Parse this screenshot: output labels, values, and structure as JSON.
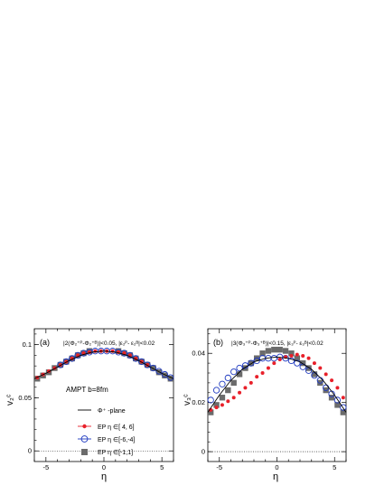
{
  "chart_data": [
    {
      "type": "scatter",
      "panel_label": "(a)",
      "selection": "|2(Φ₂⁺ᴾ-Φ₂⁺ᴮ)|<0.05, |ε₂ᴾ- ε₂ᴮ|<0.02",
      "ylabel": "v₂ᶜ",
      "xlabel": "η",
      "annotation": "AMPT b=8fm",
      "xlim": [
        -6,
        6
      ],
      "ylim": [
        -0.01,
        0.115
      ],
      "xticks": [
        -5,
        0,
        5
      ],
      "yticks": [
        0,
        0.05,
        0.1
      ],
      "ytick_labels": [
        "0",
        "0.05",
        "0.1"
      ],
      "legend": [
        {
          "label": "Φ⁺ -plane",
          "style": "line"
        },
        {
          "label": "EP  η ∈[ 4, 6]",
          "style": "red-filled-circle"
        },
        {
          "label": "EP  η ∈[-6,-4]",
          "style": "blue-open-circle"
        },
        {
          "label": "EP  η ∈[-1,1]",
          "style": "grey-square"
        }
      ],
      "series": [
        {
          "name": "Φ⁺ -plane",
          "x": [
            -6,
            -5,
            -4,
            -3,
            -2,
            -1,
            0,
            1,
            2,
            3,
            4,
            5,
            6
          ],
          "y": [
            0.068,
            0.073,
            0.079,
            0.085,
            0.09,
            0.093,
            0.094,
            0.093,
            0.09,
            0.085,
            0.079,
            0.073,
            0.068
          ]
        },
        {
          "name": "EP  η ∈[ 4, 6]",
          "x": [
            -5.75,
            -5.25,
            -4.75,
            -4.25,
            -3.75,
            -3.25,
            -2.75,
            -2.25,
            -1.75,
            -1.25,
            -0.75,
            -0.25,
            0.25,
            0.75,
            1.25,
            1.75,
            2.25,
            2.75,
            3.25,
            3.75
          ],
          "y": [
            0.069,
            0.072,
            0.075,
            0.078,
            0.081,
            0.084,
            0.087,
            0.09,
            0.092,
            0.093,
            0.094,
            0.094,
            0.094,
            0.094,
            0.093,
            0.092,
            0.09,
            0.087,
            0.084,
            0.081
          ]
        },
        {
          "name": "EP  η ∈[-6,-4]",
          "x": [
            -3.75,
            -3.25,
            -2.75,
            -2.25,
            -1.75,
            -1.25,
            -0.75,
            -0.25,
            0.25,
            0.75,
            1.25,
            1.75,
            2.25,
            2.75,
            3.25,
            3.75,
            4.25,
            4.75,
            5.25,
            5.75
          ],
          "y": [
            0.081,
            0.084,
            0.087,
            0.09,
            0.092,
            0.093,
            0.094,
            0.094,
            0.094,
            0.094,
            0.093,
            0.092,
            0.09,
            0.087,
            0.084,
            0.081,
            0.078,
            0.075,
            0.072,
            0.069
          ]
        },
        {
          "name": "EP  η ∈[-1,1]",
          "x": [
            -5.75,
            -5.25,
            -4.75,
            -4.25,
            -3.75,
            -3.25,
            -2.75,
            -2.25,
            -1.75,
            -1.25,
            1.25,
            1.75,
            2.25,
            2.75,
            3.25,
            3.75,
            4.25,
            4.75,
            5.25,
            5.75
          ],
          "y": [
            0.068,
            0.071,
            0.074,
            0.078,
            0.081,
            0.084,
            0.087,
            0.09,
            0.092,
            0.094,
            0.094,
            0.092,
            0.09,
            0.087,
            0.084,
            0.081,
            0.078,
            0.074,
            0.071,
            0.068
          ]
        }
      ]
    },
    {
      "type": "scatter",
      "panel_label": "(b)",
      "selection": "|3(Φ₃⁺ᴾ-Φ₃⁺ᴮ)|<0.15, |ε₃ᴾ- ε₃ᴮ|<0.02",
      "ylabel": "v₃ᶜ",
      "xlabel": "η",
      "xlim": [
        -6,
        6
      ],
      "ylim": [
        -0.004,
        0.05
      ],
      "xticks": [
        -5,
        0,
        5
      ],
      "yticks": [
        0,
        0.02,
        0.04
      ],
      "ytick_labels": [
        "0",
        "0.02",
        "0.04"
      ],
      "series": [
        {
          "name": "Φ⁺ -plane",
          "x": [
            -6,
            -5,
            -4,
            -3,
            -2,
            -1,
            0,
            1,
            2,
            3,
            4,
            5,
            6
          ],
          "y": [
            0.016,
            0.023,
            0.029,
            0.0335,
            0.0365,
            0.038,
            0.0385,
            0.038,
            0.0365,
            0.0335,
            0.029,
            0.023,
            0.016
          ]
        },
        {
          "name": "EP  η ∈[ 4, 6]",
          "x": [
            -5.75,
            -5.25,
            -4.75,
            -4.25,
            -3.75,
            -3.25,
            -2.75,
            -2.25,
            -1.75,
            -1.25,
            -0.75,
            -0.25,
            0.25,
            0.75,
            1.25,
            1.75,
            2.25,
            2.75,
            3.25,
            3.75,
            4.25,
            4.75,
            5.25,
            5.75
          ],
          "y": [
            0.017,
            0.018,
            0.019,
            0.0205,
            0.022,
            0.024,
            0.026,
            0.028,
            0.0305,
            0.032,
            0.034,
            0.036,
            0.0375,
            0.0385,
            0.039,
            0.0395,
            0.039,
            0.038,
            0.036,
            0.034,
            0.0315,
            0.029,
            0.026,
            0.022
          ]
        },
        {
          "name": "EP  η ∈[-6,-4]",
          "x": [
            -5.75,
            -5.25,
            -4.75,
            -4.25,
            -3.75,
            -3.25,
            -2.75,
            -2.25,
            -1.75,
            -1.25,
            -0.75,
            -0.25,
            0.25,
            0.75,
            1.25,
            1.75,
            2.25,
            2.75,
            3.25,
            3.75,
            4.25,
            4.75,
            5.25,
            5.75
          ],
          "y": [
            0.021,
            0.025,
            0.0275,
            0.03,
            0.0325,
            0.034,
            0.035,
            0.036,
            0.037,
            0.038,
            0.038,
            0.038,
            0.0385,
            0.038,
            0.037,
            0.036,
            0.0345,
            0.033,
            0.031,
            0.029,
            0.026,
            0.0235,
            0.021,
            0.018
          ]
        },
        {
          "name": "EP  η ∈[-1,1]",
          "x": [
            -5.75,
            -5.25,
            -4.75,
            -4.25,
            -3.75,
            -3.25,
            -2.75,
            -2.25,
            -1.75,
            -1.25,
            -0.75,
            -0.25,
            0.25,
            0.75,
            1.25,
            1.75,
            2.25,
            2.75,
            3.25,
            3.75,
            4.25,
            4.75,
            5.25,
            5.75
          ],
          "y": [
            0.016,
            0.019,
            0.022,
            0.025,
            0.028,
            0.0315,
            0.034,
            0.036,
            0.038,
            0.04,
            0.041,
            0.0415,
            0.0415,
            0.041,
            0.04,
            0.038,
            0.036,
            0.034,
            0.0315,
            0.028,
            0.025,
            0.022,
            0.019,
            0.016
          ]
        }
      ]
    }
  ],
  "colors": {
    "ep_4_6": "#e8202a",
    "ep_m6_m4": "#1f3ac0",
    "ep_m1_1": "#6b6b6b",
    "phi_plane": "#000000"
  }
}
